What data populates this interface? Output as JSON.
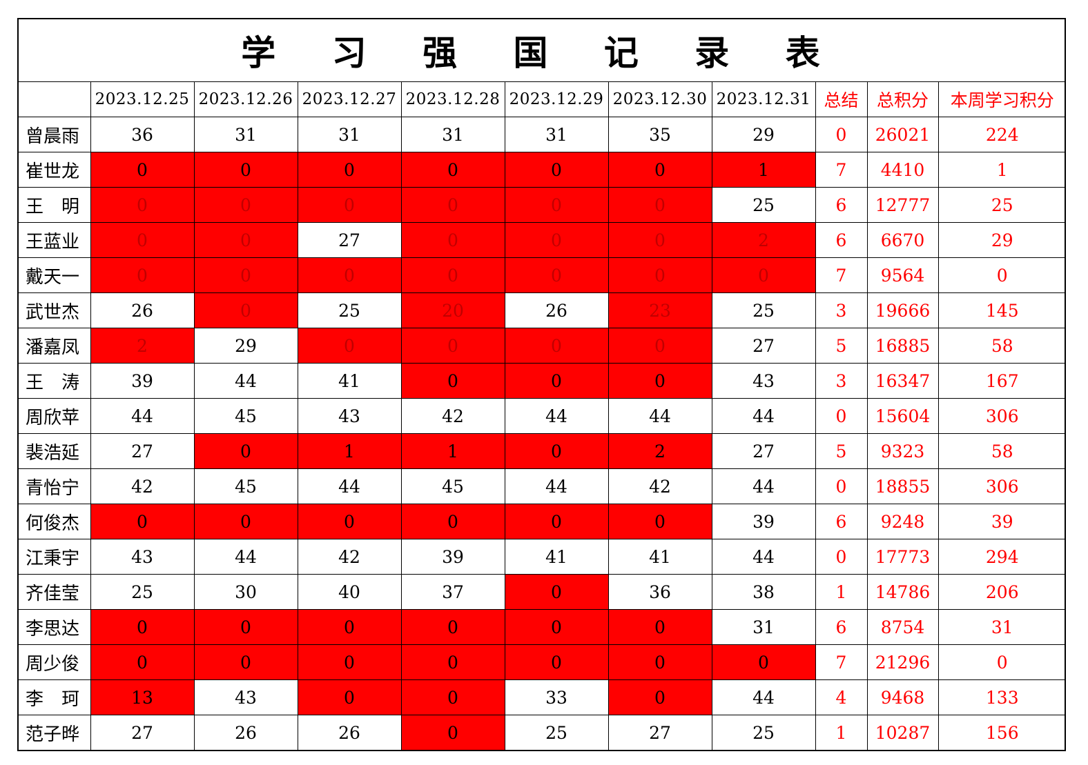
{
  "title": "学 习 强 国 记 录 表",
  "headers": {
    "dates": [
      "2023.12.25",
      "2023.12.26",
      "2023.12.27",
      "2023.12.28",
      "2023.12.29",
      "2023.12.30",
      "2023.12.31"
    ],
    "summary": [
      "总结",
      "总积分",
      "本周学习积分"
    ]
  },
  "colors": {
    "highlight": "#ff0000",
    "summary_text": "#ff0000",
    "grid": "#000000"
  },
  "rows": [
    {
      "name": "曾晨雨",
      "days": [
        "36",
        "31",
        "31",
        "31",
        "31",
        "35",
        "29"
      ],
      "highlight": [
        0,
        0,
        0,
        0,
        0,
        0,
        0
      ],
      "summary": [
        "0",
        "26021",
        "224"
      ]
    },
    {
      "name": "崔世龙",
      "days": [
        "0",
        "0",
        "0",
        "0",
        "0",
        "0",
        "1"
      ],
      "highlight": [
        1,
        1,
        1,
        1,
        1,
        1,
        1
      ],
      "summary": [
        "7",
        "4410",
        "1"
      ]
    },
    {
      "name": "王　明",
      "days": [
        "0",
        "0",
        "0",
        "0",
        "0",
        "0",
        "25"
      ],
      "highlight": [
        2,
        2,
        2,
        2,
        2,
        2,
        0
      ],
      "summary": [
        "6",
        "12777",
        "25"
      ]
    },
    {
      "name": "王蓝业",
      "days": [
        "0",
        "0",
        "27",
        "0",
        "0",
        "0",
        "2"
      ],
      "highlight": [
        2,
        2,
        0,
        2,
        2,
        2,
        2
      ],
      "summary": [
        "6",
        "6670",
        "29"
      ]
    },
    {
      "name": "戴天一",
      "days": [
        "0",
        "0",
        "0",
        "0",
        "0",
        "0",
        "0"
      ],
      "highlight": [
        2,
        2,
        2,
        2,
        2,
        2,
        2
      ],
      "summary": [
        "7",
        "9564",
        "0"
      ]
    },
    {
      "name": "武世杰",
      "days": [
        "26",
        "0",
        "25",
        "20",
        "26",
        "23",
        "25"
      ],
      "highlight": [
        0,
        2,
        0,
        2,
        0,
        2,
        0
      ],
      "summary": [
        "3",
        "19666",
        "145"
      ]
    },
    {
      "name": "潘嘉凤",
      "days": [
        "2",
        "29",
        "0",
        "0",
        "0",
        "0",
        "27"
      ],
      "highlight": [
        2,
        0,
        2,
        2,
        2,
        2,
        0
      ],
      "summary": [
        "5",
        "16885",
        "58"
      ]
    },
    {
      "name": "王　涛",
      "days": [
        "39",
        "44",
        "41",
        "0",
        "0",
        "0",
        "43"
      ],
      "highlight": [
        0,
        0,
        0,
        1,
        1,
        1,
        0
      ],
      "summary": [
        "3",
        "16347",
        "167"
      ]
    },
    {
      "name": "周欣苹",
      "days": [
        "44",
        "45",
        "43",
        "42",
        "44",
        "44",
        "44"
      ],
      "highlight": [
        0,
        0,
        0,
        0,
        0,
        0,
        0
      ],
      "summary": [
        "0",
        "15604",
        "306"
      ]
    },
    {
      "name": "裴浩延",
      "days": [
        "27",
        "0",
        "1",
        "1",
        "0",
        "2",
        "27"
      ],
      "highlight": [
        0,
        1,
        1,
        1,
        1,
        1,
        0
      ],
      "summary": [
        "5",
        "9323",
        "58"
      ]
    },
    {
      "name": "青怡宁",
      "days": [
        "42",
        "45",
        "44",
        "45",
        "44",
        "42",
        "44"
      ],
      "highlight": [
        0,
        0,
        0,
        0,
        0,
        0,
        0
      ],
      "summary": [
        "0",
        "18855",
        "306"
      ]
    },
    {
      "name": "何俊杰",
      "days": [
        "0",
        "0",
        "0",
        "0",
        "0",
        "0",
        "39"
      ],
      "highlight": [
        1,
        1,
        1,
        1,
        1,
        1,
        0
      ],
      "summary": [
        "6",
        "9248",
        "39"
      ]
    },
    {
      "name": "江秉宇",
      "days": [
        "43",
        "44",
        "42",
        "39",
        "41",
        "41",
        "44"
      ],
      "highlight": [
        0,
        0,
        0,
        0,
        0,
        0,
        0
      ],
      "summary": [
        "0",
        "17773",
        "294"
      ]
    },
    {
      "name": "齐佳莹",
      "days": [
        "25",
        "30",
        "40",
        "37",
        "0",
        "36",
        "38"
      ],
      "highlight": [
        0,
        0,
        0,
        0,
        1,
        0,
        0
      ],
      "summary": [
        "1",
        "14786",
        "206"
      ]
    },
    {
      "name": "李思达",
      "days": [
        "0",
        "0",
        "0",
        "0",
        "0",
        "0",
        "31"
      ],
      "highlight": [
        1,
        1,
        1,
        1,
        1,
        1,
        0
      ],
      "summary": [
        "6",
        "8754",
        "31"
      ]
    },
    {
      "name": "周少俊",
      "days": [
        "0",
        "0",
        "0",
        "0",
        "0",
        "0",
        "0"
      ],
      "highlight": [
        1,
        1,
        1,
        1,
        1,
        1,
        1
      ],
      "summary": [
        "7",
        "21296",
        "0"
      ]
    },
    {
      "name": "李　珂",
      "days": [
        "13",
        "43",
        "0",
        "0",
        "33",
        "0",
        "44"
      ],
      "highlight": [
        1,
        0,
        1,
        1,
        0,
        1,
        0
      ],
      "summary": [
        "4",
        "9468",
        "133"
      ]
    },
    {
      "name": "范子晔",
      "days": [
        "27",
        "26",
        "26",
        "0",
        "25",
        "27",
        "25"
      ],
      "highlight": [
        0,
        0,
        0,
        1,
        0,
        0,
        0
      ],
      "summary": [
        "1",
        "10287",
        "156"
      ]
    }
  ]
}
